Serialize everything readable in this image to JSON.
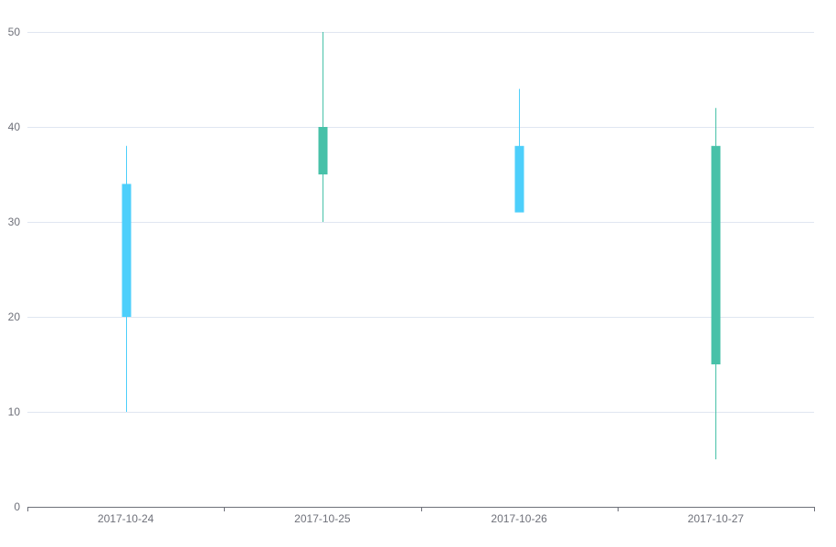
{
  "chart_data": {
    "type": "candlestick",
    "categories": [
      "2017-10-24",
      "2017-10-25",
      "2017-10-26",
      "2017-10-27"
    ],
    "series": [
      {
        "values": [
          {
            "open": 20,
            "close": 34,
            "low": 10,
            "high": 38
          },
          {
            "open": 40,
            "close": 35,
            "low": 30,
            "high": 50
          },
          {
            "open": 31,
            "close": 38,
            "low": 33,
            "high": 44
          },
          {
            "open": 38,
            "close": 15,
            "low": 5,
            "high": 42
          }
        ]
      }
    ],
    "ylim": [
      0,
      50
    ],
    "yticks": [
      0,
      10,
      20,
      30,
      40,
      50
    ],
    "grid": true,
    "colors": {
      "up": "#4dcffb",
      "down": "#47c1a8",
      "grid": "#e0e6f1",
      "axis": "#6e7079"
    }
  }
}
